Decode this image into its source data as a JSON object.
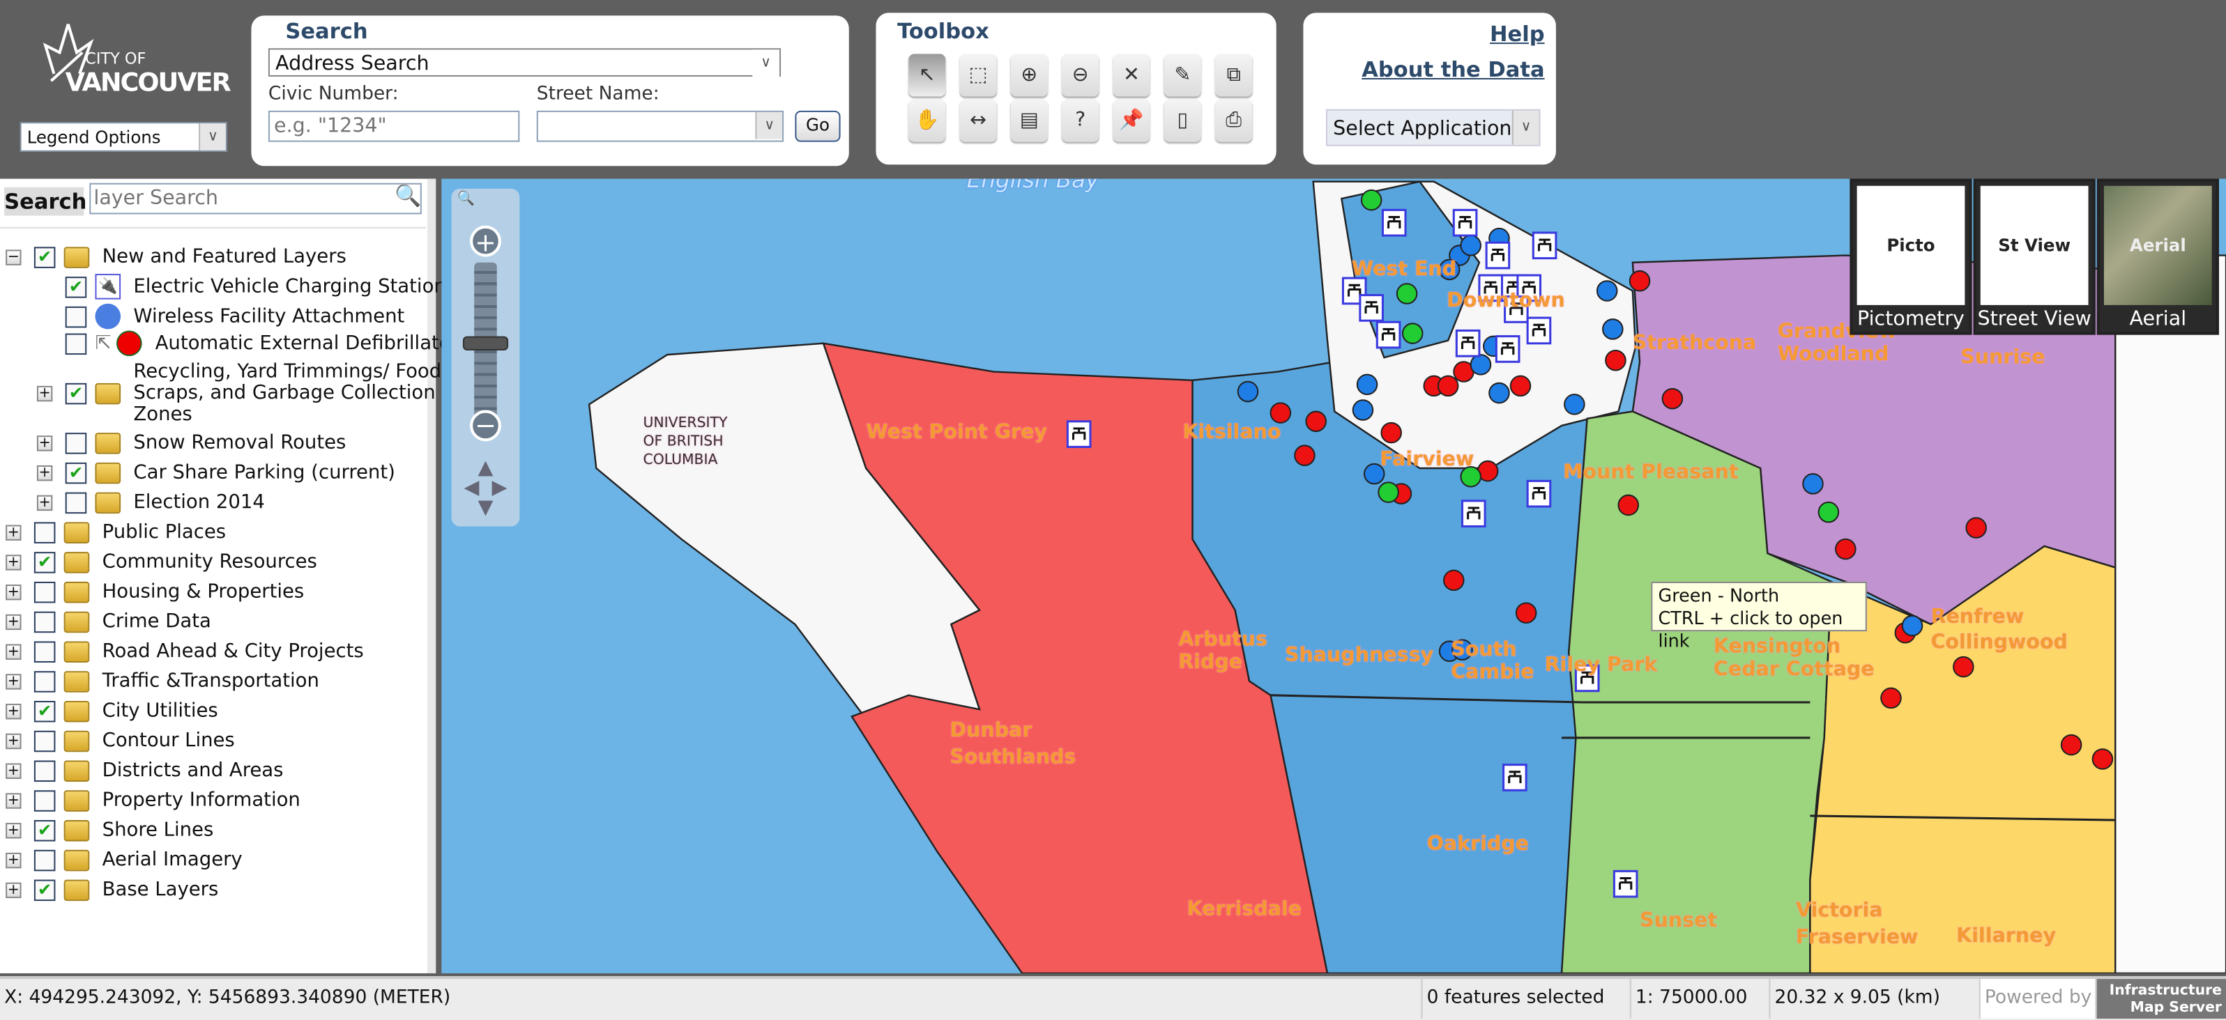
{
  "header": {
    "logo_text": "CITY OF VANCOUVER",
    "legend_options": "Legend Options",
    "search": {
      "title": "Search",
      "type_select": "Address Search",
      "civic_label": "Civic Number:",
      "civic_placeholder": "e.g. \"1234\"",
      "civic_value": "",
      "street_label": "Street Name:",
      "street_value": "",
      "go": "Go"
    },
    "toolbox": {
      "title": "Toolbox",
      "tools": [
        "select-arrow",
        "zoom-box",
        "zoom-in",
        "zoom-out",
        "clear-selection",
        "edit-legend",
        "copy",
        "pan-hand",
        "measure-line",
        "measure-area",
        "identify",
        "pushpin",
        "print-page",
        "printer"
      ]
    },
    "links": {
      "help": "Help",
      "about": "About the Data",
      "select_app": "Select Application"
    }
  },
  "sidebar": {
    "search_button": "Search",
    "search_placeholder": "layer Search",
    "items": [
      {
        "label": "New and Featured Layers",
        "checked": true,
        "expander": "-",
        "icon": "folder"
      },
      {
        "label": "Electric Vehicle Charging Stations",
        "checked": true,
        "icon": "ev-charger"
      },
      {
        "label": "Wireless Facility Attachment",
        "checked": false,
        "icon": "blue-dot"
      },
      {
        "label": "Automatic External Defibrillators",
        "checked": false,
        "icon": "red-dot"
      },
      {
        "label": "Recycling, Yard Trimmings/ Food Scraps, and Garbage Collection Zones",
        "checked": true,
        "expander": "+",
        "icon": "folder"
      },
      {
        "label": "Snow Removal Routes",
        "checked": false,
        "expander": "+",
        "icon": "folder"
      },
      {
        "label": "Car Share Parking (current)",
        "checked": true,
        "expander": "+",
        "icon": "folder"
      },
      {
        "label": "Election 2014",
        "checked": false,
        "expander": "+",
        "icon": "folder"
      },
      {
        "label": "Public Places",
        "checked": false,
        "expander": "+",
        "icon": "folder"
      },
      {
        "label": "Community Resources",
        "checked": true,
        "expander": "+",
        "icon": "folder"
      },
      {
        "label": "Housing & Properties",
        "checked": false,
        "expander": "+",
        "icon": "folder"
      },
      {
        "label": "Crime Data",
        "checked": false,
        "expander": "+",
        "icon": "folder"
      },
      {
        "label": "Road Ahead & City Projects",
        "checked": false,
        "expander": "+",
        "icon": "folder"
      },
      {
        "label": "Traffic &Transportation",
        "checked": false,
        "expander": "+",
        "icon": "folder"
      },
      {
        "label": "City Utilities",
        "checked": true,
        "expander": "+",
        "icon": "folder"
      },
      {
        "label": "Contour Lines",
        "checked": false,
        "expander": "+",
        "icon": "folder"
      },
      {
        "label": "Districts and Areas",
        "checked": false,
        "expander": "+",
        "icon": "folder"
      },
      {
        "label": "Property Information",
        "checked": false,
        "expander": "+",
        "icon": "folder"
      },
      {
        "label": "Shore Lines",
        "checked": true,
        "expander": "+",
        "icon": "folder"
      },
      {
        "label": "Aerial Imagery",
        "checked": false,
        "expander": "+",
        "icon": "folder"
      },
      {
        "label": "Base Layers",
        "checked": true,
        "expander": "+",
        "icon": "folder"
      }
    ]
  },
  "map": {
    "labels": {
      "english_bay": "English Bay",
      "ubc": "UNIVERSITY OF BRITISH COLUMBIA",
      "west_end": "West End",
      "downtown": "Downtown",
      "strathcona": "Strathcona",
      "grandview": "Grandview Woodland",
      "sunrise": "Sunrise",
      "west_point_grey": "West Point Grey",
      "kitsilano": "Kitsilano",
      "fairview": "Fairview",
      "mount_pleasant": "Mount Pleasant",
      "arbutus": "Arbutus Ridge",
      "shaughnessy": "Shaughnessy",
      "south_cambie": "South Cambie",
      "riley_park": "Riley Park",
      "kensington": "Kensington Cedar Cottage",
      "renfrew": "Renfrew Collingwood",
      "dunbar": "Dunbar Southlands",
      "oakridge": "Oakridge",
      "kerrisdale": "Kerrisdale",
      "sunset": "Sunset",
      "victoria": "Victoria Fraserview",
      "killarney": "Killarney"
    },
    "tooltip": {
      "line1": "Green - North",
      "line2": "CTRL + click to open link"
    },
    "views": [
      {
        "thumb": "Picto",
        "label": "Pictometry"
      },
      {
        "thumb": "St View",
        "label": "Street View"
      },
      {
        "thumb": "Aerial",
        "label": "Aerial"
      }
    ],
    "zone_colors": {
      "red": "#f55a5a",
      "blue": "#58a5dd",
      "green": "#9dd47e",
      "purple": "#c293d1",
      "yellow": "#fdd868",
      "water": "#6cb4e6"
    }
  },
  "status": {
    "coords": "X: 494295.243092, Y: 5456893.340890 (METER)",
    "selected": "0 features selected",
    "scale": "1: 75000.00",
    "extent": "20.32 x 9.05 (km)",
    "powered": "Powered by",
    "ims": "Infrastructure Map Server"
  }
}
